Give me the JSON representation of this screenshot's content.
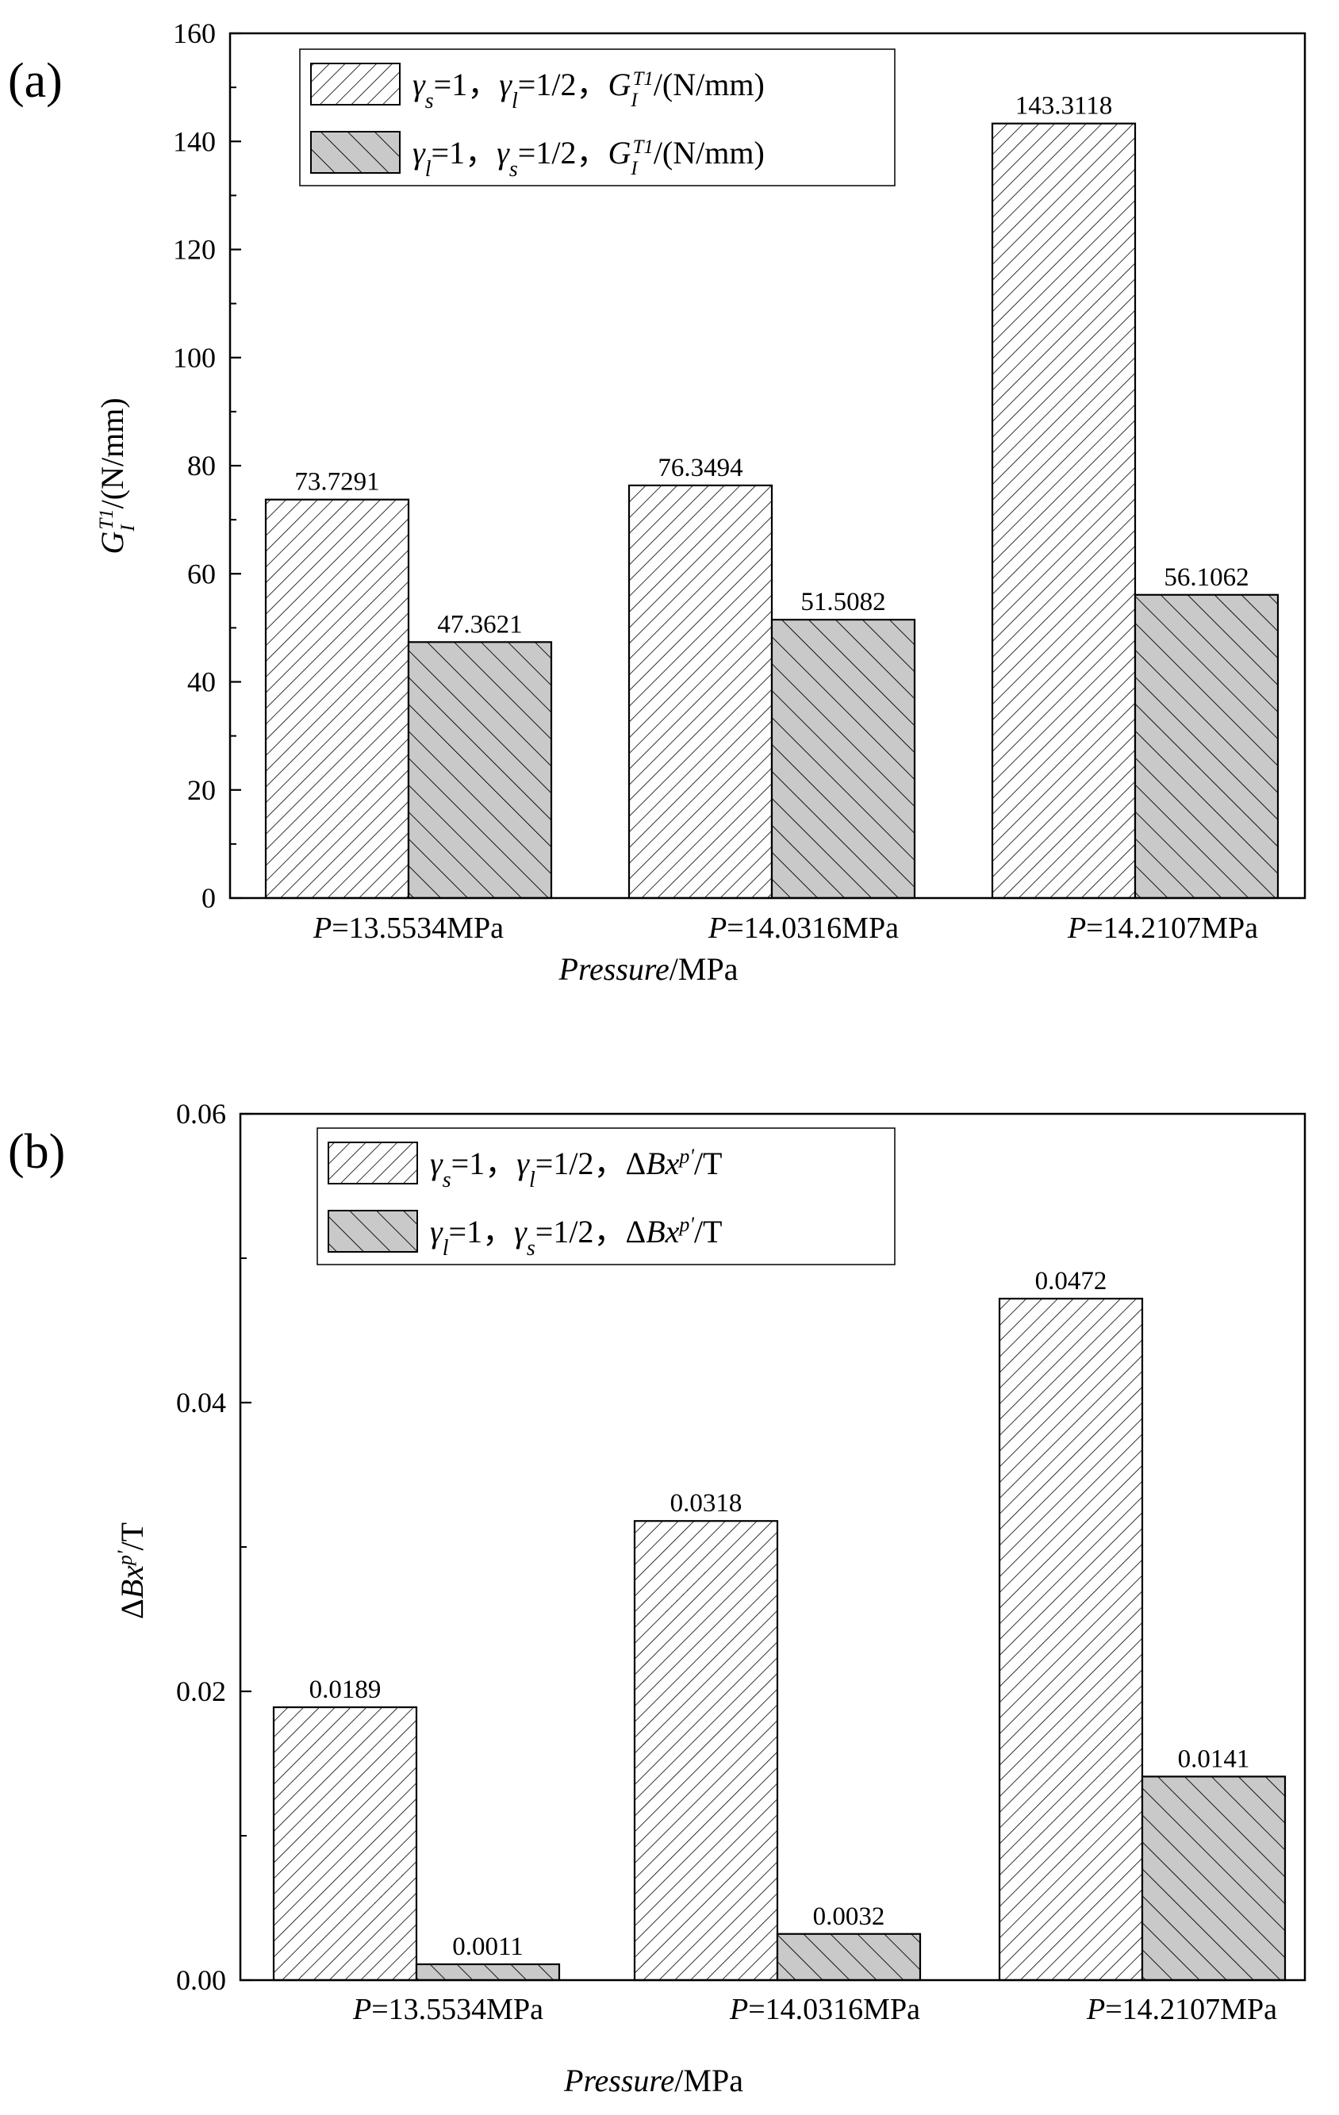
{
  "chart_data": [
    {
      "type": "bar",
      "panel_label": "(a)",
      "title": "",
      "categories_prefix": "P",
      "categories": [
        "=13.5534MPa",
        "=14.0316MPa",
        "=14.2107MPa"
      ],
      "xlabel_italic": "Pressure",
      "xlabel_rest": "/MPa",
      "ylabel": "G_I^T1/(N/mm)",
      "ylim": [
        0,
        160
      ],
      "yticks": [
        "0",
        "20",
        "40",
        "60",
        "80",
        "100",
        "120",
        "140",
        "160"
      ],
      "legend_position": "top-left",
      "series": [
        {
          "name": "γs=1，γl=1/2，GIT1/(N/mm)",
          "legend_text": "γs=1，γl=1/2，G_I^T1/(N/mm)",
          "pattern": "backslash-hatch",
          "color": "#ffffff",
          "values": [
            73.7291,
            76.3494,
            143.3118
          ],
          "labels": [
            "73.7291",
            "76.3494",
            "143.3118"
          ]
        },
        {
          "name": "γl=1，γs=1/2，GIT1/(N/mm)",
          "legend_text": "γl=1，γs=1/2，G_I^T1/(N/mm)",
          "pattern": "slash-hatch",
          "color": "#c9c9c9",
          "values": [
            47.3621,
            51.5082,
            56.1062
          ],
          "labels": [
            "47.3621",
            "51.5082",
            "56.1062"
          ]
        }
      ]
    },
    {
      "type": "bar",
      "panel_label": "(b)",
      "title": "",
      "categories_prefix": "P",
      "categories": [
        "=13.5534MPa",
        "=14.0316MPa",
        "=14.2107MPa"
      ],
      "xlabel_italic": "Pressure",
      "xlabel_rest": "/MPa",
      "ylabel": "ΔBx^p'/T",
      "ylim": [
        0,
        0.06
      ],
      "yticks": [
        "0.00",
        "0.02",
        "0.04",
        "0.06"
      ],
      "legend_position": "top-left",
      "series": [
        {
          "name": "γs=1，γl=1/2，ΔBxp'/T",
          "legend_text": "γs=1，γl=1/2，ΔBx^p'/T",
          "pattern": "backslash-hatch",
          "color": "#ffffff",
          "values": [
            0.0189,
            0.0318,
            0.0472
          ],
          "labels": [
            "0.0189",
            "0.0318",
            "0.0472"
          ]
        },
        {
          "name": "γl=1，γs=1/2，ΔBxp'/T",
          "legend_text": "γl=1，γs=1/2，ΔBx^p'/T",
          "pattern": "slash-hatch",
          "color": "#c9c9c9",
          "values": [
            0.0011,
            0.0032,
            0.0141
          ],
          "labels": [
            "0.0011",
            "0.0032",
            "0.0141"
          ]
        }
      ]
    }
  ]
}
